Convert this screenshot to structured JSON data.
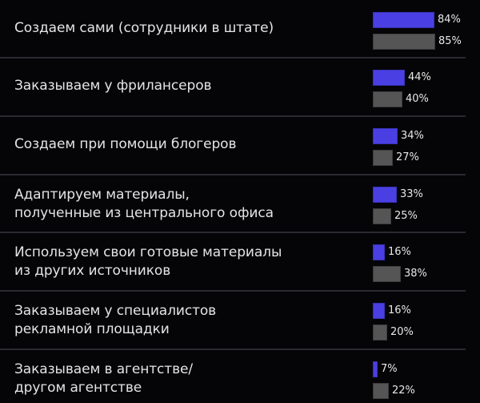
{
  "colors": {
    "background": "#050507",
    "series_a": "#4a3fe2",
    "series_b": "#555555",
    "divider": "#2a2a31",
    "text": "#e4e4e6"
  },
  "chart_data": {
    "type": "bar",
    "orientation": "horizontal",
    "title": "",
    "xlabel": "",
    "ylabel": "",
    "xlim": [
      0,
      100
    ],
    "grid": false,
    "legend": "none",
    "categories": [
      "Создаем сами (сотрудники в штате)",
      "Заказываем у фрилансеров",
      "Создаем при помощи блогеров",
      "Адаптируем материалы, полученные из центрального офиса",
      "Используем свои готовые материалы из других источников",
      "Заказываем у специалистов рекламной площадки",
      "Заказываем в агентстве/ другом агентстве"
    ],
    "series": [
      {
        "name": "series_blue",
        "color": "#4a3fe2",
        "values": [
          84,
          44,
          34,
          33,
          16,
          16,
          7
        ]
      },
      {
        "name": "series_grey",
        "color": "#555555",
        "values": [
          85,
          40,
          27,
          25,
          38,
          20,
          22
        ]
      }
    ]
  },
  "rows": [
    {
      "label_lines": [
        "Создаем сами (сотрудники в штате)"
      ],
      "blue": 84,
      "blue_label": "84%",
      "grey": 85,
      "grey_label": "85%"
    },
    {
      "label_lines": [
        "Заказываем у фрилансеров"
      ],
      "blue": 44,
      "blue_label": "44%",
      "grey": 40,
      "grey_label": "40%"
    },
    {
      "label_lines": [
        "Создаем при помощи блогеров"
      ],
      "blue": 34,
      "blue_label": "34%",
      "grey": 27,
      "grey_label": "27%"
    },
    {
      "label_lines": [
        "Адаптируем материалы,",
        "полученные из центрального офиса"
      ],
      "blue": 33,
      "blue_label": "33%",
      "grey": 25,
      "grey_label": "25%"
    },
    {
      "label_lines": [
        "Используем свои готовые материалы",
        "из других источников"
      ],
      "blue": 16,
      "blue_label": "16%",
      "grey": 38,
      "grey_label": "38%"
    },
    {
      "label_lines": [
        "Заказываем у специалистов",
        "рекламной площадки"
      ],
      "blue": 16,
      "blue_label": "16%",
      "grey": 20,
      "grey_label": "20%"
    },
    {
      "label_lines": [
        "Заказываем в агентстве/",
        "другом агентстве"
      ],
      "blue": 7,
      "blue_label": "7%",
      "grey": 22,
      "grey_label": "22%"
    }
  ]
}
